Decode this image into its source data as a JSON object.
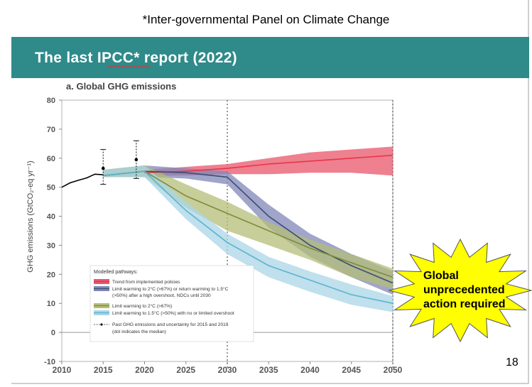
{
  "slide": {
    "footnote": "*Inter-governmental Panel on Climate Change",
    "title": "The last IPCC* report (2022)",
    "page_number": "18",
    "title_bar_color": "#2f8a8a"
  },
  "callout": {
    "lines": [
      "Global",
      "unprecedented",
      "action required"
    ],
    "fill_color": "#ffff00"
  },
  "chart_data": {
    "type": "line",
    "title": "a. Global GHG emissions",
    "ylabel": "GHG emissions (GtCO₂-eq yr⁻¹)",
    "xlabel": "",
    "xlim": [
      2010,
      2050
    ],
    "ylim": [
      -10,
      80
    ],
    "xticks": [
      2010,
      2015,
      2020,
      2025,
      2030,
      2035,
      2040,
      2045,
      2050
    ],
    "yticks": [
      80,
      70,
      60,
      50,
      40,
      30,
      20,
      10,
      0,
      -10
    ],
    "vertical_reference_lines": [
      2030,
      2050
    ],
    "historical": {
      "name": "Past GHG emissions",
      "color": "#000000",
      "x": [
        2010,
        2011,
        2012,
        2013,
        2014,
        2015
      ],
      "y": [
        50.0,
        51.5,
        52.4,
        53.2,
        54.5,
        54.3
      ]
    },
    "uncertainty": [
      {
        "year": 2015,
        "low": 51,
        "high": 63,
        "median": 56.5
      },
      {
        "year": 2019,
        "low": 53,
        "high": 66,
        "median": 59.5
      }
    ],
    "series": [
      {
        "name": "Trend from implemented policies",
        "color": "#e8344a",
        "band_color": "#e8566a",
        "x": [
          2020,
          2025,
          2030,
          2035,
          2040,
          2045,
          2050
        ],
        "median": [
          55,
          55.5,
          56.5,
          58,
          59,
          60,
          61
        ],
        "low": [
          54,
          54,
          54.5,
          54.5,
          55,
          55,
          54
        ],
        "high": [
          56,
          57,
          58,
          60,
          62,
          63,
          64
        ]
      },
      {
        "name": "Limit warming to 2°C (>67%) or return warming to 1.5°C (>50%) after a high overshoot, NDCs until 2030",
        "color": "#3b4e72",
        "band_color": "#8187b8",
        "x": [
          2015,
          2020,
          2025,
          2030,
          2035,
          2040,
          2045,
          2050
        ],
        "median": [
          54,
          55.5,
          55,
          53.5,
          40,
          30,
          23,
          17
        ],
        "low": [
          53.5,
          53.5,
          53,
          51,
          36,
          26,
          19,
          13
        ],
        "high": [
          56,
          57.5,
          56.5,
          55.5,
          44,
          34,
          27,
          21
        ]
      },
      {
        "name": "Limit warming to 2°C (>67%)",
        "color": "#7d8c3a",
        "band_color": "#b4bd78",
        "x": [
          2015,
          2020,
          2025,
          2030,
          2035,
          2040,
          2045,
          2050
        ],
        "median": [
          54,
          55.5,
          47,
          41,
          35,
          29,
          24,
          19
        ],
        "low": [
          53.5,
          53.5,
          43,
          35,
          30,
          25,
          19,
          15
        ],
        "high": [
          56,
          57.5,
          51,
          45,
          38,
          32,
          27,
          22
        ]
      },
      {
        "name": "Limit warming to 1.5°C (>50%) with no or limited overshoot",
        "color": "#5ab4cf",
        "band_color": "#a9d6e6",
        "x": [
          2015,
          2020,
          2025,
          2030,
          2035,
          2040,
          2045,
          2050
        ],
        "median": [
          54,
          55.5,
          42,
          31,
          23,
          18,
          13,
          10
        ],
        "low": [
          53.5,
          53.5,
          39,
          27,
          19,
          14,
          9.5,
          7
        ],
        "high": [
          56,
          57.5,
          45,
          34,
          26,
          21,
          16.5,
          12.5
        ]
      }
    ],
    "legend": {
      "title": "Modelled pathways:",
      "position": "bottom-left",
      "past_label": "Past GHG emissions and uncertainty for 2015 and 2019 (dot indicates the median)"
    }
  }
}
